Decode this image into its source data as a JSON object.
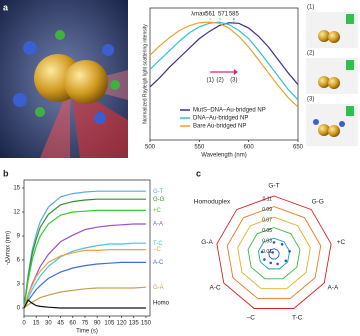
{
  "figure": {
    "panel_labels": [
      "a",
      "b",
      "c"
    ],
    "inset_labels": [
      "(1)",
      "(2)",
      "(3)"
    ]
  },
  "chart_data": [
    {
      "type": "line",
      "xlabel": "Wavelength (nm)",
      "ylabel": "Normalized Rayleigh light scattering intensity",
      "x": [
        500,
        510,
        520,
        530,
        540,
        550,
        560,
        570,
        580,
        590,
        600,
        610,
        620,
        630,
        640,
        650
      ],
      "xlim": [
        500,
        650
      ],
      "xticks": [
        500,
        550,
        600,
        650
      ],
      "ylim": [
        0,
        1.12
      ],
      "peak_prefix": "λmax:",
      "peaks": [
        561,
        571,
        585
      ],
      "arrow_labels": [
        "(1)",
        "(2)",
        "(3)"
      ],
      "series": [
        {
          "name": "MutS–DNA–Au-bridged NP",
          "color": "#3b2f9e",
          "values": [
            0.45,
            0.53,
            0.62,
            0.7,
            0.78,
            0.86,
            0.92,
            0.97,
            0.995,
            0.99,
            0.95,
            0.88,
            0.79,
            0.68,
            0.57,
            0.47
          ]
        },
        {
          "name": "DNA–Au-bridged NP",
          "color": "#2ec4d6",
          "values": [
            0.6,
            0.68,
            0.76,
            0.84,
            0.91,
            0.96,
            0.99,
            1.0,
            0.98,
            0.93,
            0.86,
            0.76,
            0.65,
            0.54,
            0.43,
            0.34
          ]
        },
        {
          "name": "Bare Au-bridged NP",
          "color": "#f0a030",
          "values": [
            0.72,
            0.8,
            0.87,
            0.93,
            0.97,
            0.995,
            1.0,
            0.99,
            0.95,
            0.88,
            0.79,
            0.68,
            0.57,
            0.46,
            0.36,
            0.28
          ]
        }
      ]
    },
    {
      "type": "line",
      "xlabel": "Time (s)",
      "ylabel": "-Δλmax (nm)",
      "x": [
        0,
        5,
        10,
        15,
        20,
        30,
        45,
        60,
        75,
        90,
        105,
        120,
        135,
        150
      ],
      "xlim": [
        0,
        155
      ],
      "xticks": [
        0,
        15,
        30,
        45,
        60,
        75,
        90,
        105,
        120,
        135,
        150
      ],
      "ylim": [
        -1,
        16
      ],
      "yticks": [
        0,
        3,
        6,
        9,
        12,
        15
      ],
      "series": [
        {
          "name": "G-T",
          "color": "#5aa9e0",
          "values": [
            0,
            4.1,
            7.2,
            9.2,
            10.8,
            12.6,
            13.9,
            14.3,
            14.5,
            14.6,
            14.6,
            14.6,
            14.6,
            14.6
          ]
        },
        {
          "name": "G-G",
          "color": "#2f8f2f",
          "values": [
            0,
            3.8,
            6.7,
            8.6,
            10.1,
            11.7,
            12.9,
            13.3,
            13.5,
            13.6,
            13.6,
            13.6,
            13.6,
            13.6
          ]
        },
        {
          "name": "+C",
          "color": "#33cc33",
          "values": [
            0,
            3.4,
            6.0,
            7.7,
            9.0,
            10.5,
            11.6,
            12.0,
            12.1,
            12.2,
            12.2,
            12.2,
            12.2,
            12.2
          ]
        },
        {
          "name": "A-A",
          "color": "#9b4fd0",
          "values": [
            0,
            1.6,
            3.0,
            4.1,
            5.2,
            6.7,
            8.3,
            9.1,
            9.8,
            10.1,
            10.3,
            10.4,
            10.5,
            10.5
          ]
        },
        {
          "name": "T-C",
          "color": "#3fc8e0",
          "values": [
            0,
            1.2,
            2.3,
            3.2,
            4.0,
            5.2,
            6.4,
            7.1,
            7.5,
            7.8,
            8.0,
            8.0,
            8.1,
            8.1
          ]
        },
        {
          "name": "−C",
          "color": "#f0a040",
          "values": [
            0,
            1.6,
            2.8,
            3.9,
            4.6,
            5.7,
            6.5,
            6.9,
            7.2,
            7.2,
            7.3,
            7.3,
            7.3,
            7.3
          ]
        },
        {
          "name": "A-C",
          "color": "#3a6fd8",
          "values": [
            0,
            0.9,
            1.6,
            2.3,
            2.8,
            3.7,
            4.5,
            5.0,
            5.3,
            5.5,
            5.6,
            5.7,
            5.7,
            5.7
          ]
        },
        {
          "name": "G-A",
          "color": "#c8a050",
          "values": [
            0,
            0.4,
            0.7,
            1.0,
            1.3,
            1.6,
            2.0,
            2.2,
            2.4,
            2.5,
            2.5,
            2.5,
            2.5,
            2.6
          ]
        },
        {
          "name": "Homo",
          "color": "#111111",
          "values": [
            0,
            1.0,
            0.6,
            0.3,
            0.2,
            0.1,
            0,
            0,
            0,
            0,
            0,
            0,
            0,
            0
          ]
        }
      ]
    },
    {
      "type": "radar",
      "categories": [
        "G-T",
        "G-G",
        "+C",
        "A-A",
        "T-C",
        "−C",
        "A-C",
        "G-A",
        "Homoduplex"
      ],
      "rlim": [
        0,
        0.11
      ],
      "rticks": [
        0.01,
        0.03,
        0.05,
        0.07,
        0.09,
        0.11
      ],
      "ring_colors": [
        "#2a55c8",
        "#1aa3a3",
        "#3cb93c",
        "#e8b020",
        "#f07820",
        "#e02020"
      ],
      "series": [
        {
          "color": "#2a55c8",
          "values": [
            0.022,
            0.024,
            0.03,
            0.026,
            0.02,
            0.018,
            0.021,
            0.023,
            0.004
          ]
        }
      ]
    }
  ]
}
